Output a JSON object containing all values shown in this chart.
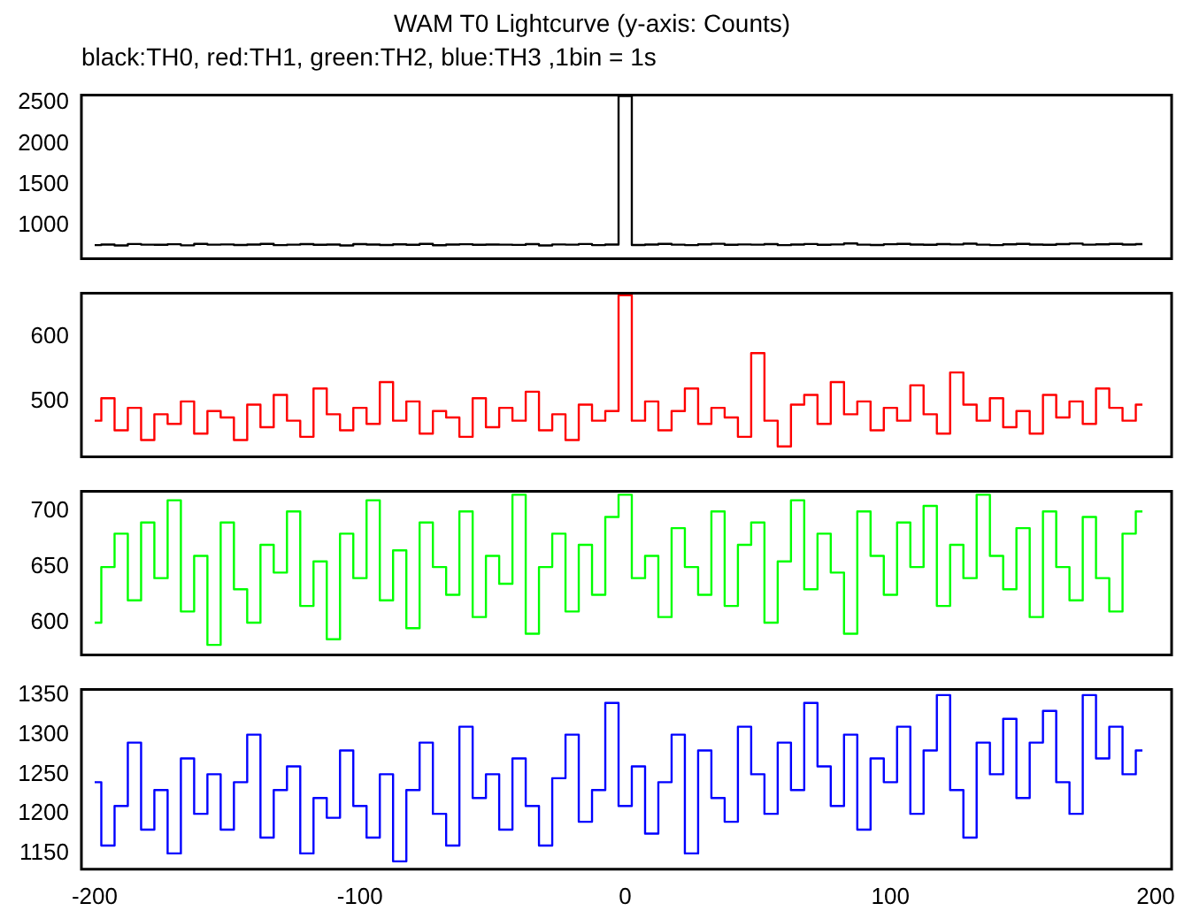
{
  "chart_data": [
    {
      "type": "step",
      "title": "WAM T0 Lightcurve (y-axis: Counts)",
      "subtitle": "black:TH0, red:TH1, green:TH2, blue:TH3 ,1bin = 1s",
      "xlim": [
        -205,
        206
      ],
      "ylim": [
        600,
        2590
      ],
      "yticks": [
        1000,
        1500,
        2000,
        2500
      ],
      "tick_labels": "y",
      "marker": "none",
      "x": [
        -200,
        -195,
        -190,
        -185,
        -180,
        -175,
        -170,
        -165,
        -160,
        -155,
        -150,
        -145,
        -140,
        -135,
        -130,
        -125,
        -120,
        -115,
        -110,
        -105,
        -100,
        -95,
        -90,
        -85,
        -80,
        -75,
        -70,
        -65,
        -60,
        -55,
        -50,
        -45,
        -40,
        -35,
        -30,
        -25,
        -20,
        -15,
        -10,
        -5,
        0,
        5,
        10,
        15,
        20,
        25,
        30,
        35,
        40,
        45,
        50,
        55,
        60,
        65,
        70,
        75,
        80,
        85,
        90,
        95,
        100,
        105,
        110,
        115,
        120,
        125,
        130,
        135,
        140,
        145,
        150,
        155,
        160,
        165,
        170,
        175,
        180,
        185,
        190,
        195
      ],
      "series": [
        {
          "color": "#000000",
          "values": [
            765,
            772,
            760,
            778,
            770,
            768,
            775,
            762,
            780,
            770,
            773,
            766,
            771,
            779,
            764,
            770,
            776,
            768,
            772,
            760,
            777,
            771,
            766,
            774,
            769,
            780,
            763,
            771,
            775,
            768,
            772,
            770,
            767,
            776,
            761,
            773,
            770,
            778,
            765,
            771,
            2580,
            766,
            772,
            779,
            770,
            765,
            774,
            781,
            768,
            773,
            770,
            776,
            764,
            771,
            778,
            769,
            773,
            784,
            770,
            766,
            775,
            779,
            771,
            768,
            776,
            773,
            782,
            770,
            765,
            774,
            779,
            771,
            768,
            776,
            783,
            770,
            774,
            779,
            772,
            776
          ]
        }
      ]
    },
    {
      "type": "step",
      "xlim": [
        -205,
        206
      ],
      "ylim": [
        414,
        668
      ],
      "yticks": [
        500,
        600
      ],
      "tick_labels": "y",
      "marker": "none",
      "x": [
        -200,
        -195,
        -190,
        -185,
        -180,
        -175,
        -170,
        -165,
        -160,
        -155,
        -150,
        -145,
        -140,
        -135,
        -130,
        -125,
        -120,
        -115,
        -110,
        -105,
        -100,
        -95,
        -90,
        -85,
        -80,
        -75,
        -70,
        -65,
        -60,
        -55,
        -50,
        -45,
        -40,
        -35,
        -30,
        -25,
        -20,
        -15,
        -10,
        -5,
        0,
        5,
        10,
        15,
        20,
        25,
        30,
        35,
        40,
        45,
        50,
        55,
        60,
        65,
        70,
        75,
        80,
        85,
        90,
        95,
        100,
        105,
        110,
        115,
        120,
        125,
        130,
        135,
        140,
        145,
        150,
        155,
        160,
        165,
        170,
        175,
        180,
        185,
        190,
        195
      ],
      "series": [
        {
          "color": "#ff0000",
          "values": [
            470,
            505,
            455,
            490,
            440,
            480,
            465,
            500,
            450,
            485,
            475,
            440,
            495,
            460,
            510,
            470,
            445,
            520,
            480,
            455,
            490,
            465,
            530,
            470,
            500,
            450,
            485,
            475,
            445,
            505,
            460,
            490,
            470,
            515,
            455,
            480,
            440,
            495,
            470,
            485,
            665,
            470,
            500,
            455,
            485,
            520,
            465,
            490,
            475,
            445,
            575,
            470,
            430,
            495,
            510,
            465,
            530,
            480,
            500,
            455,
            490,
            470,
            525,
            480,
            450,
            545,
            495,
            470,
            505,
            460,
            485,
            450,
            510,
            475,
            500,
            465,
            520,
            490,
            470,
            495
          ]
        }
      ]
    },
    {
      "type": "step",
      "xlim": [
        -205,
        206
      ],
      "ylim": [
        571,
        718
      ],
      "yticks": [
        600,
        650,
        700
      ],
      "tick_labels": "y",
      "marker": "none",
      "x": [
        -200,
        -195,
        -190,
        -185,
        -180,
        -175,
        -170,
        -165,
        -160,
        -155,
        -150,
        -145,
        -140,
        -135,
        -130,
        -125,
        -120,
        -115,
        -110,
        -105,
        -100,
        -95,
        -90,
        -85,
        -80,
        -75,
        -70,
        -65,
        -60,
        -55,
        -50,
        -45,
        -40,
        -35,
        -30,
        -25,
        -20,
        -15,
        -10,
        -5,
        0,
        5,
        10,
        15,
        20,
        25,
        30,
        35,
        40,
        45,
        50,
        55,
        60,
        65,
        70,
        75,
        80,
        85,
        90,
        95,
        100,
        105,
        110,
        115,
        120,
        125,
        130,
        135,
        140,
        145,
        150,
        155,
        160,
        165,
        170,
        175,
        180,
        185,
        190,
        195
      ],
      "series": [
        {
          "color": "#00ff00",
          "values": [
            600,
            650,
            680,
            620,
            690,
            640,
            710,
            610,
            660,
            580,
            690,
            630,
            600,
            670,
            645,
            700,
            615,
            655,
            585,
            680,
            640,
            710,
            620,
            665,
            595,
            690,
            650,
            625,
            700,
            605,
            660,
            635,
            715,
            590,
            650,
            680,
            610,
            670,
            625,
            695,
            715,
            640,
            660,
            605,
            685,
            650,
            625,
            700,
            615,
            670,
            690,
            600,
            655,
            710,
            630,
            680,
            645,
            590,
            700,
            660,
            625,
            690,
            650,
            705,
            615,
            670,
            640,
            715,
            660,
            630,
            685,
            605,
            700,
            650,
            620,
            695,
            640,
            610,
            680,
            700
          ]
        }
      ]
    },
    {
      "type": "step",
      "xlim": [
        -205,
        206
      ],
      "xticks": [
        -200,
        -100,
        0,
        100,
        200
      ],
      "ylim": [
        1130,
        1357
      ],
      "yticks": [
        1150,
        1200,
        1250,
        1300,
        1350
      ],
      "marker": "none",
      "x": [
        -200,
        -195,
        -190,
        -185,
        -180,
        -175,
        -170,
        -165,
        -160,
        -155,
        -150,
        -145,
        -140,
        -135,
        -130,
        -125,
        -120,
        -115,
        -110,
        -105,
        -100,
        -95,
        -90,
        -85,
        -80,
        -75,
        -70,
        -65,
        -60,
        -55,
        -50,
        -45,
        -40,
        -35,
        -30,
        -25,
        -20,
        -15,
        -10,
        -5,
        0,
        5,
        10,
        15,
        20,
        25,
        30,
        35,
        40,
        45,
        50,
        55,
        60,
        65,
        70,
        75,
        80,
        85,
        90,
        95,
        100,
        105,
        110,
        115,
        120,
        125,
        130,
        135,
        140,
        145,
        150,
        155,
        160,
        165,
        170,
        175,
        180,
        185,
        190,
        195
      ],
      "series": [
        {
          "color": "#0000ff",
          "values": [
            1240,
            1160,
            1210,
            1290,
            1180,
            1230,
            1150,
            1270,
            1200,
            1250,
            1180,
            1240,
            1300,
            1170,
            1230,
            1260,
            1150,
            1220,
            1195,
            1280,
            1210,
            1170,
            1250,
            1140,
            1230,
            1290,
            1200,
            1160,
            1310,
            1220,
            1250,
            1180,
            1270,
            1210,
            1160,
            1245,
            1300,
            1190,
            1230,
            1340,
            1210,
            1260,
            1175,
            1240,
            1300,
            1150,
            1280,
            1220,
            1190,
            1310,
            1250,
            1200,
            1290,
            1230,
            1340,
            1260,
            1210,
            1300,
            1180,
            1270,
            1240,
            1310,
            1200,
            1280,
            1350,
            1230,
            1170,
            1290,
            1250,
            1320,
            1220,
            1290,
            1330,
            1240,
            1200,
            1350,
            1270,
            1310,
            1250,
            1280
          ]
        }
      ]
    }
  ]
}
